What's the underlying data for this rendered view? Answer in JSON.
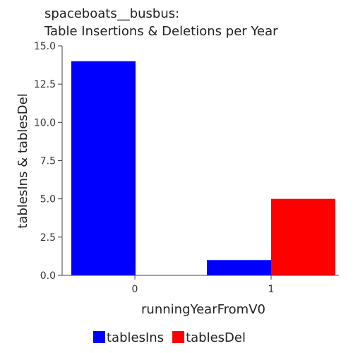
{
  "chart_data": {
    "type": "bar",
    "title": [
      "spaceboats__busbus:",
      "Table Insertions & Deletions per Year"
    ],
    "xlabel": "runningYearFromV0",
    "ylabel": "tablesIns & tablesDel",
    "categories": [
      "0",
      "1"
    ],
    "series": [
      {
        "name": "tablesIns",
        "values": [
          14,
          1
        ],
        "color": "#0000ff"
      },
      {
        "name": "tablesDel",
        "values": [
          0,
          5
        ],
        "color": "#ff0000"
      }
    ],
    "ylim": [
      0,
      15
    ],
    "yticks": [
      "0.0",
      "2.5",
      "5.0",
      "7.5",
      "10.0",
      "12.5",
      "15.0"
    ],
    "grid": false,
    "legend": "bottom"
  }
}
